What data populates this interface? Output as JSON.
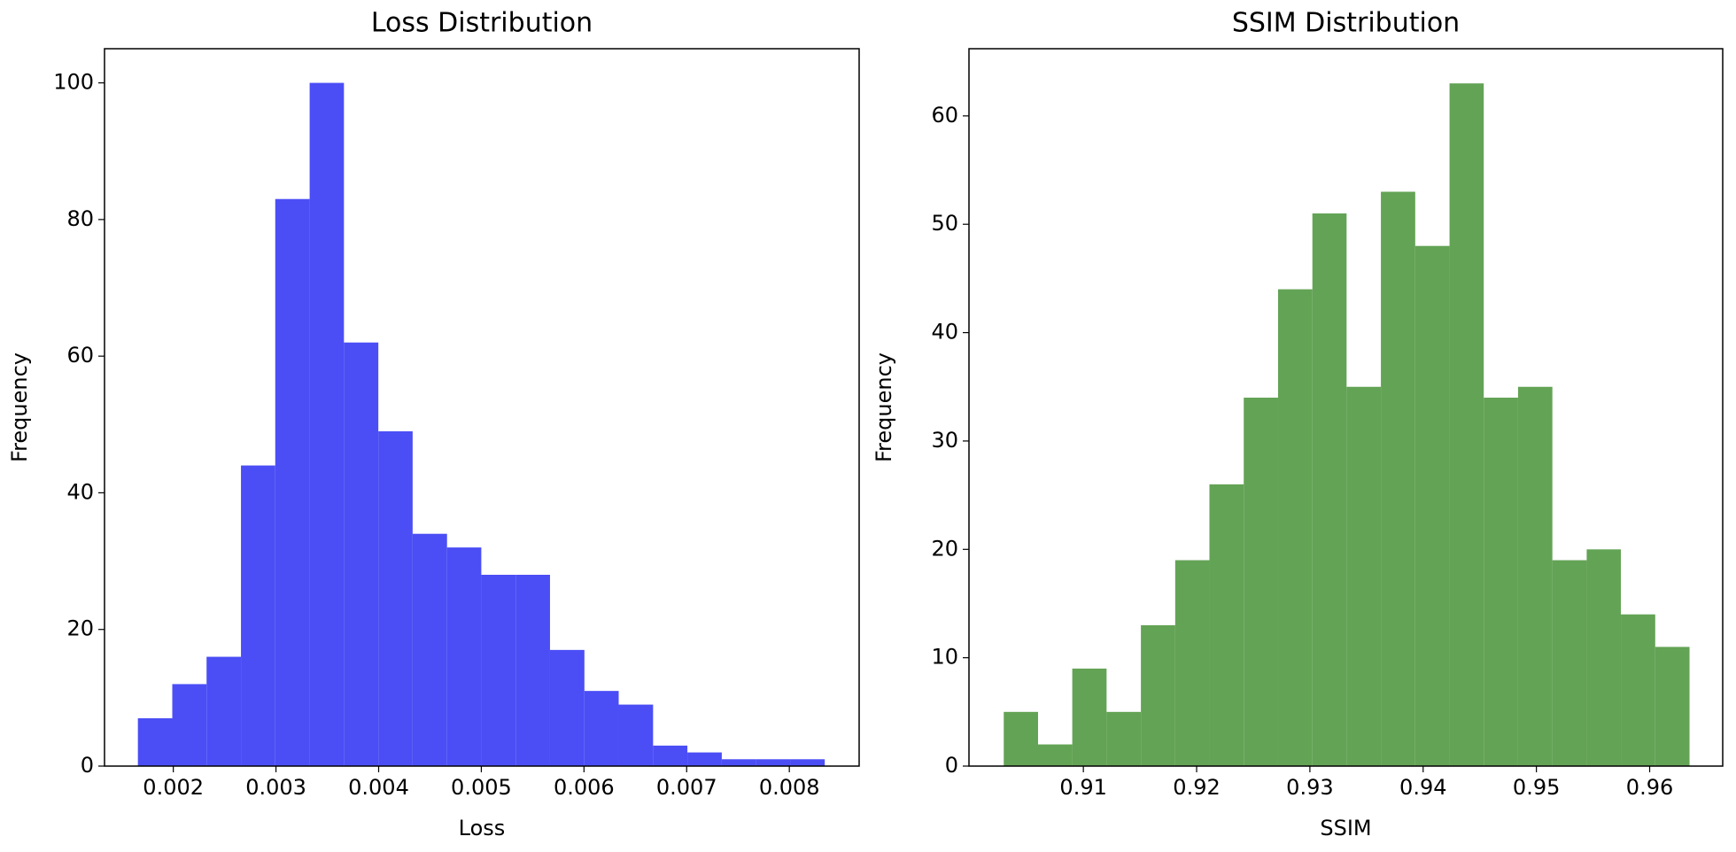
{
  "chart_data": [
    {
      "type": "histogram",
      "title": "Loss Distribution",
      "xlabel": "Loss",
      "ylabel": "Frequency",
      "color": "#4b4ef5",
      "bins": [
        0.001655,
        0.00199,
        0.002324,
        0.002659,
        0.002993,
        0.003328,
        0.003662,
        0.003997,
        0.004331,
        0.004666,
        0.005,
        0.005335,
        0.005669,
        0.006004,
        0.006338,
        0.006673,
        0.007007,
        0.007342,
        0.007676,
        0.008011,
        0.008345
      ],
      "values": [
        7,
        12,
        16,
        44,
        83,
        100,
        62,
        49,
        34,
        32,
        28,
        28,
        17,
        11,
        9,
        3,
        2,
        1,
        1,
        1
      ],
      "xlim": [
        0.00133,
        0.00868
      ],
      "ylim": [
        0,
        105
      ],
      "xticks": [
        0.002,
        0.003,
        0.004,
        0.005,
        0.006,
        0.007,
        0.008
      ],
      "yticks": [
        0,
        20,
        40,
        60,
        80,
        100
      ]
    },
    {
      "type": "histogram",
      "title": "SSIM Distribution",
      "xlabel": "SSIM",
      "ylabel": "Frequency",
      "color": "#63a355",
      "bins": [
        0.90297,
        0.906,
        0.90902,
        0.91205,
        0.91508,
        0.91811,
        0.92113,
        0.92416,
        0.92719,
        0.93022,
        0.93324,
        0.93627,
        0.9393,
        0.94233,
        0.94535,
        0.94838,
        0.95141,
        0.95444,
        0.95746,
        0.96049,
        0.96352
      ],
      "values": [
        5,
        2,
        9,
        5,
        13,
        19,
        26,
        34,
        44,
        51,
        35,
        53,
        48,
        63,
        34,
        35,
        19,
        20,
        14,
        11
      ],
      "xlim": [
        0.8999,
        0.96645
      ],
      "ylim": [
        0,
        66.2
      ],
      "xticks": [
        0.91,
        0.92,
        0.93,
        0.94,
        0.95,
        0.96
      ],
      "yticks": [
        0,
        10,
        20,
        30,
        40,
        50,
        60
      ]
    }
  ]
}
